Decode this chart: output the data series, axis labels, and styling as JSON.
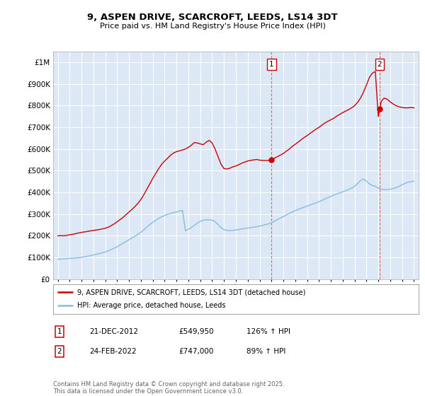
{
  "title": "9, ASPEN DRIVE, SCARCROFT, LEEDS, LS14 3DT",
  "subtitle": "Price paid vs. HM Land Registry's House Price Index (HPI)",
  "ylabel_ticks": [
    "£0",
    "£100K",
    "£200K",
    "£300K",
    "£400K",
    "£500K",
    "£600K",
    "£700K",
    "£800K",
    "£900K",
    "£1M"
  ],
  "ytick_values": [
    0,
    100000,
    200000,
    300000,
    400000,
    500000,
    600000,
    700000,
    800000,
    900000,
    1000000
  ],
  "ylim": [
    0,
    1050000
  ],
  "xlim_start": 1994.6,
  "xlim_end": 2025.4,
  "background_color": "#ffffff",
  "plot_bg_color": "#dce8f5",
  "red_color": "#cc0000",
  "blue_color": "#88bbdd",
  "marker1_x": 2013.0,
  "marker2_x": 2022.12,
  "annotation1": {
    "label": "1",
    "date": "21-DEC-2012",
    "price": "£549,950",
    "hpi": "126% ↑ HPI"
  },
  "annotation2": {
    "label": "2",
    "date": "24-FEB-2022",
    "price": "£747,000",
    "hpi": "89% ↑ HPI"
  },
  "legend1": "9, ASPEN DRIVE, SCARCROFT, LEEDS, LS14 3DT (detached house)",
  "legend2": "HPI: Average price, detached house, Leeds",
  "footer": "Contains HM Land Registry data © Crown copyright and database right 2025.\nThis data is licensed under the Open Government Licence v3.0.",
  "red_x": [
    1995.0,
    1995.25,
    1995.5,
    1995.75,
    1996.0,
    1996.25,
    1996.5,
    1996.75,
    1997.0,
    1997.25,
    1997.5,
    1997.75,
    1998.0,
    1998.25,
    1998.5,
    1998.75,
    1999.0,
    1999.25,
    1999.5,
    1999.75,
    2000.0,
    2000.25,
    2000.5,
    2000.75,
    2001.0,
    2001.25,
    2001.5,
    2001.75,
    2002.0,
    2002.25,
    2002.5,
    2002.75,
    2003.0,
    2003.25,
    2003.5,
    2003.75,
    2004.0,
    2004.25,
    2004.5,
    2004.75,
    2005.0,
    2005.25,
    2005.5,
    2005.75,
    2006.0,
    2006.25,
    2006.5,
    2006.75,
    2007.0,
    2007.25,
    2007.5,
    2007.75,
    2008.0,
    2008.25,
    2008.5,
    2008.75,
    2009.0,
    2009.25,
    2009.5,
    2009.75,
    2010.0,
    2010.25,
    2010.5,
    2010.75,
    2011.0,
    2011.25,
    2011.5,
    2011.75,
    2012.0,
    2012.25,
    2012.5,
    2012.75,
    2013.0,
    2013.25,
    2013.5,
    2013.75,
    2014.0,
    2014.25,
    2014.5,
    2014.75,
    2015.0,
    2015.25,
    2015.5,
    2015.75,
    2016.0,
    2016.25,
    2016.5,
    2016.75,
    2017.0,
    2017.25,
    2017.5,
    2017.75,
    2018.0,
    2018.25,
    2018.5,
    2018.75,
    2019.0,
    2019.25,
    2019.5,
    2019.75,
    2020.0,
    2020.25,
    2020.5,
    2020.75,
    2021.0,
    2021.25,
    2021.5,
    2021.75,
    2022.0,
    2022.25,
    2022.5,
    2022.75,
    2023.0,
    2023.25,
    2023.5,
    2023.75,
    2024.0,
    2024.25,
    2024.5,
    2024.75,
    2025.0
  ],
  "red_y": [
    200000,
    201000,
    200000,
    202000,
    205000,
    207000,
    210000,
    213000,
    216000,
    218000,
    220000,
    223000,
    225000,
    227000,
    229000,
    232000,
    235000,
    240000,
    247000,
    255000,
    265000,
    275000,
    285000,
    298000,
    310000,
    322000,
    335000,
    350000,
    368000,
    390000,
    415000,
    440000,
    465000,
    488000,
    510000,
    530000,
    545000,
    558000,
    572000,
    582000,
    588000,
    592000,
    596000,
    600000,
    608000,
    618000,
    630000,
    628000,
    624000,
    620000,
    632000,
    640000,
    628000,
    600000,
    565000,
    530000,
    510000,
    508000,
    512000,
    518000,
    522000,
    528000,
    535000,
    540000,
    545000,
    548000,
    550000,
    552000,
    549000,
    548000,
    547000,
    548000,
    552000,
    558000,
    565000,
    572000,
    580000,
    590000,
    600000,
    612000,
    622000,
    632000,
    643000,
    653000,
    662000,
    672000,
    682000,
    692000,
    700000,
    710000,
    720000,
    728000,
    735000,
    742000,
    752000,
    760000,
    768000,
    775000,
    782000,
    790000,
    800000,
    815000,
    835000,
    862000,
    895000,
    930000,
    950000,
    958000,
    750000,
    820000,
    835000,
    830000,
    818000,
    808000,
    800000,
    795000,
    792000,
    790000,
    790000,
    792000,
    790000
  ],
  "blue_x": [
    1995.0,
    1995.25,
    1995.5,
    1995.75,
    1996.0,
    1996.25,
    1996.5,
    1996.75,
    1997.0,
    1997.25,
    1997.5,
    1997.75,
    1998.0,
    1998.25,
    1998.5,
    1998.75,
    1999.0,
    1999.25,
    1999.5,
    1999.75,
    2000.0,
    2000.25,
    2000.5,
    2000.75,
    2001.0,
    2001.25,
    2001.5,
    2001.75,
    2002.0,
    2002.25,
    2002.5,
    2002.75,
    2003.0,
    2003.25,
    2003.5,
    2003.75,
    2004.0,
    2004.25,
    2004.5,
    2004.75,
    2005.0,
    2005.25,
    2005.5,
    2005.75,
    2006.0,
    2006.25,
    2006.5,
    2006.75,
    2007.0,
    2007.25,
    2007.5,
    2007.75,
    2008.0,
    2008.25,
    2008.5,
    2008.75,
    2009.0,
    2009.25,
    2009.5,
    2009.75,
    2010.0,
    2010.25,
    2010.5,
    2010.75,
    2011.0,
    2011.25,
    2011.5,
    2011.75,
    2012.0,
    2012.25,
    2012.5,
    2012.75,
    2013.0,
    2013.25,
    2013.5,
    2013.75,
    2014.0,
    2014.25,
    2014.5,
    2014.75,
    2015.0,
    2015.25,
    2015.5,
    2015.75,
    2016.0,
    2016.25,
    2016.5,
    2016.75,
    2017.0,
    2017.25,
    2017.5,
    2017.75,
    2018.0,
    2018.25,
    2018.5,
    2018.75,
    2019.0,
    2019.25,
    2019.5,
    2019.75,
    2020.0,
    2020.25,
    2020.5,
    2020.75,
    2021.0,
    2021.25,
    2021.5,
    2021.75,
    2022.0,
    2022.25,
    2022.5,
    2022.75,
    2023.0,
    2023.25,
    2023.5,
    2023.75,
    2024.0,
    2024.25,
    2024.5,
    2024.75,
    2025.0
  ],
  "blue_y": [
    92000,
    93000,
    94000,
    95000,
    96000,
    97000,
    98000,
    99000,
    101000,
    103000,
    106000,
    109000,
    112000,
    115000,
    118000,
    122000,
    126000,
    131000,
    137000,
    143000,
    150000,
    158000,
    166000,
    174000,
    182000,
    190000,
    198000,
    207000,
    217000,
    228000,
    240000,
    252000,
    262000,
    272000,
    281000,
    288000,
    294000,
    299000,
    303000,
    307000,
    310000,
    314000,
    318000,
    223000,
    230000,
    238000,
    248000,
    258000,
    267000,
    272000,
    274000,
    274000,
    272000,
    265000,
    252000,
    238000,
    228000,
    225000,
    224000,
    225000,
    227000,
    229000,
    232000,
    234000,
    236000,
    238000,
    240000,
    242000,
    245000,
    248000,
    252000,
    255000,
    260000,
    267000,
    275000,
    282000,
    289000,
    296000,
    303000,
    310000,
    316000,
    322000,
    327000,
    332000,
    337000,
    342000,
    347000,
    352000,
    357000,
    363000,
    370000,
    376000,
    382000,
    388000,
    393000,
    398000,
    403000,
    408000,
    413000,
    420000,
    428000,
    440000,
    455000,
    462000,
    452000,
    440000,
    432000,
    428000,
    420000,
    415000,
    413000,
    413000,
    415000,
    418000,
    422000,
    428000,
    435000,
    442000,
    447000,
    450000,
    452000
  ]
}
